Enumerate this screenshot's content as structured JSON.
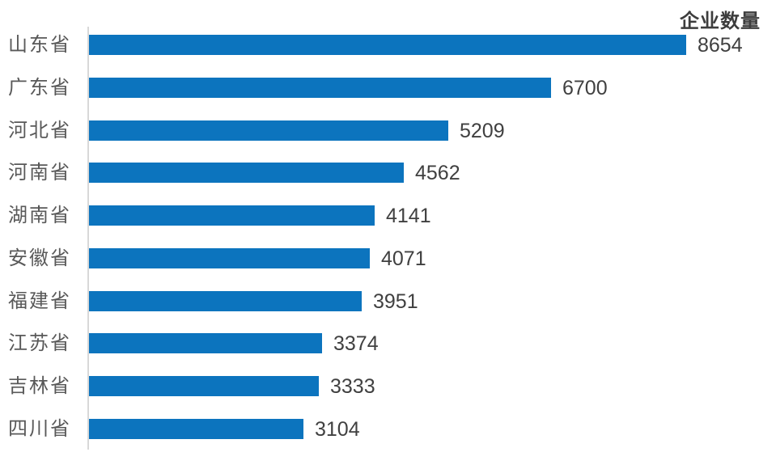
{
  "chart_data": {
    "type": "bar",
    "orientation": "horizontal",
    "title": "企业数量",
    "categories": [
      "山东省",
      "广东省",
      "河北省",
      "河南省",
      "湖南省",
      "安徽省",
      "福建省",
      "江苏省",
      "吉林省",
      "四川省"
    ],
    "values": [
      8654,
      6700,
      5209,
      4562,
      4141,
      4071,
      3951,
      3374,
      3333,
      3104
    ],
    "xlim": [
      0,
      8654
    ],
    "data_labels": true,
    "grid": false,
    "legend": false,
    "colors": {
      "bar": "#0c74be",
      "title": "#3d3d3d",
      "category_label": "#595959",
      "value_label": "#404040",
      "axis_line": "#d8d8d8",
      "background": "#ffffff"
    }
  }
}
